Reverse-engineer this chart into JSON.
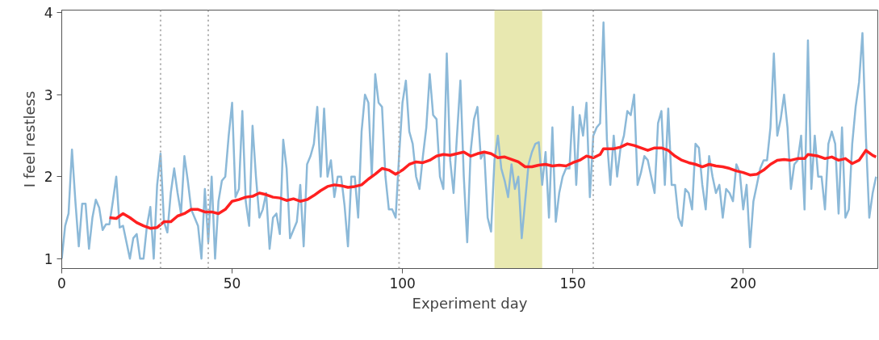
{
  "chart_data": {
    "type": "line",
    "xlabel": "Experiment day",
    "ylabel": "I feel restless",
    "xlim": [
      0,
      239.5
    ],
    "ylim": [
      0.88,
      4.03
    ],
    "xticks": [
      0,
      50,
      100,
      150,
      200
    ],
    "yticks": [
      1,
      2,
      3,
      4
    ],
    "grid": false,
    "marker": "none",
    "line_style": "solid",
    "ref_lines": [
      {
        "axis": "x",
        "value": 29,
        "color": "#aaaaaa",
        "line_style": "dotted"
      },
      {
        "axis": "x",
        "value": 43,
        "color": "#aaaaaa",
        "line_style": "dotted"
      },
      {
        "axis": "x",
        "value": 99,
        "color": "#aaaaaa",
        "line_style": "dotted"
      },
      {
        "axis": "x",
        "value": 156,
        "color": "#aaaaaa",
        "line_style": "dotted"
      }
    ],
    "bands": [
      {
        "axis": "x",
        "from": 127,
        "to": 141,
        "color": "#e8e8b0"
      }
    ],
    "series": [
      {
        "color": "#8cb9d8",
        "x": [
          0,
          1,
          2,
          3,
          4,
          5,
          6,
          7,
          8,
          9,
          10,
          11,
          12,
          13,
          14,
          15,
          16,
          17,
          18,
          19,
          20,
          21,
          22,
          23,
          24,
          25,
          26,
          27,
          28,
          29,
          30,
          31,
          32,
          33,
          34,
          35,
          36,
          37,
          38,
          39,
          40,
          41,
          42,
          43,
          44,
          45,
          46,
          47,
          48,
          49,
          50,
          51,
          52,
          53,
          54,
          55,
          56,
          57,
          58,
          59,
          60,
          61,
          62,
          63,
          64,
          65,
          66,
          67,
          68,
          69,
          70,
          71,
          72,
          73,
          74,
          75,
          76,
          77,
          78,
          79,
          80,
          81,
          82,
          83,
          84,
          85,
          86,
          87,
          88,
          89,
          90,
          91,
          92,
          93,
          94,
          95,
          96,
          97,
          98,
          99,
          100,
          101,
          102,
          103,
          104,
          105,
          106,
          107,
          108,
          109,
          110,
          111,
          112,
          113,
          114,
          115,
          116,
          117,
          118,
          119,
          120,
          121,
          122,
          123,
          124,
          125,
          126,
          127,
          128,
          129,
          130,
          131,
          132,
          133,
          134,
          135,
          136,
          137,
          138,
          139,
          140,
          141,
          142,
          143,
          144,
          145,
          146,
          147,
          148,
          149,
          150,
          151,
          152,
          153,
          154,
          155,
          156,
          157,
          158,
          159,
          160,
          161,
          162,
          163,
          164,
          165,
          166,
          167,
          168,
          169,
          170,
          171,
          172,
          173,
          174,
          175,
          176,
          177,
          178,
          179,
          180,
          181,
          182,
          183,
          184,
          185,
          186,
          187,
          188,
          189,
          190,
          191,
          192,
          193,
          194,
          195,
          196,
          197,
          198,
          199,
          200,
          201,
          202,
          203,
          204,
          205,
          206,
          207,
          208,
          209,
          210,
          211,
          212,
          213,
          214,
          215,
          216,
          217,
          218,
          219,
          220,
          221,
          222,
          223,
          224,
          225,
          226,
          227,
          228,
          229,
          230,
          231,
          232,
          233,
          234,
          235,
          236,
          237,
          238,
          239
        ],
        "values": [
          1.0,
          1.4,
          1.55,
          2.33,
          1.7,
          1.15,
          1.67,
          1.67,
          1.12,
          1.5,
          1.72,
          1.62,
          1.35,
          1.42,
          1.42,
          1.7,
          2.0,
          1.38,
          1.4,
          1.2,
          1.0,
          1.25,
          1.3,
          1.0,
          1.0,
          1.4,
          1.63,
          1.0,
          1.9,
          2.28,
          1.45,
          1.32,
          1.8,
          2.1,
          1.8,
          1.55,
          2.25,
          1.95,
          1.6,
          1.5,
          1.4,
          1.0,
          1.85,
          1.2,
          2.0,
          1.0,
          1.7,
          1.95,
          2.0,
          2.5,
          2.9,
          1.75,
          1.85,
          2.8,
          1.7,
          1.4,
          2.62,
          2.0,
          1.5,
          1.6,
          1.8,
          1.12,
          1.5,
          1.55,
          1.3,
          2.45,
          2.1,
          1.25,
          1.35,
          1.45,
          1.9,
          1.15,
          2.15,
          2.25,
          2.4,
          2.85,
          2.0,
          2.83,
          2.0,
          2.2,
          1.75,
          2.0,
          2.0,
          1.65,
          1.15,
          2.0,
          2.0,
          1.5,
          2.55,
          3.0,
          2.9,
          2.0,
          3.25,
          2.9,
          2.85,
          2.0,
          1.6,
          1.6,
          1.5,
          2.25,
          2.9,
          3.17,
          2.55,
          2.4,
          2.0,
          1.85,
          2.25,
          2.6,
          3.25,
          2.75,
          2.7,
          2.0,
          1.85,
          3.5,
          2.2,
          1.8,
          2.5,
          3.17,
          2.0,
          1.2,
          2.3,
          2.7,
          2.85,
          2.22,
          2.3,
          1.5,
          1.33,
          2.2,
          2.5,
          2.1,
          1.95,
          1.75,
          2.15,
          1.85,
          2.0,
          1.25,
          1.7,
          2.15,
          2.3,
          2.4,
          2.42,
          1.9,
          2.3,
          1.5,
          2.6,
          1.45,
          1.8,
          2.0,
          2.1,
          2.1,
          2.85,
          1.9,
          2.75,
          2.5,
          2.9,
          1.75,
          2.5,
          2.6,
          2.65,
          3.88,
          2.45,
          1.9,
          2.5,
          2.0,
          2.35,
          2.5,
          2.8,
          2.75,
          3.0,
          1.9,
          2.05,
          2.25,
          2.2,
          2.0,
          1.8,
          2.65,
          2.8,
          1.9,
          2.83,
          1.9,
          1.9,
          1.5,
          1.4,
          1.85,
          1.8,
          1.6,
          2.4,
          2.35,
          1.9,
          1.6,
          2.25,
          2.0,
          1.8,
          1.9,
          1.5,
          1.85,
          1.8,
          1.7,
          2.15,
          2.05,
          1.6,
          1.9,
          1.14,
          1.7,
          1.9,
          2.1,
          2.2,
          2.2,
          2.6,
          3.5,
          2.5,
          2.7,
          3.0,
          2.6,
          1.85,
          2.15,
          2.2,
          2.5,
          1.6,
          3.66,
          1.85,
          2.5,
          2.0,
          2.0,
          1.6,
          2.4,
          2.55,
          2.4,
          1.55,
          2.6,
          1.5,
          1.6,
          2.4,
          2.85,
          3.15,
          3.75,
          2.5,
          1.5,
          1.8,
          2.0
        ]
      },
      {
        "color": "#ff2020",
        "x": [
          14,
          16,
          18,
          20,
          22,
          24,
          26,
          28,
          30,
          32,
          34,
          36,
          38,
          40,
          42,
          44,
          46,
          48,
          50,
          52,
          54,
          56,
          58,
          60,
          62,
          64,
          66,
          68,
          70,
          72,
          74,
          76,
          78,
          80,
          82,
          84,
          86,
          88,
          90,
          92,
          94,
          96,
          98,
          100,
          102,
          104,
          106,
          108,
          110,
          112,
          114,
          116,
          118,
          120,
          122,
          124,
          126,
          128,
          130,
          132,
          134,
          136,
          138,
          140,
          142,
          144,
          146,
          148,
          150,
          152,
          154,
          156,
          158,
          159,
          162,
          164,
          166,
          168,
          170,
          172,
          174,
          176,
          178,
          180,
          182,
          184,
          186,
          188,
          190,
          192,
          194,
          196,
          198,
          200,
          202,
          204,
          206,
          208,
          210,
          212,
          214,
          216,
          218,
          219,
          222,
          224,
          226,
          228,
          230,
          232,
          234,
          236,
          238,
          239
        ],
        "values": [
          1.5,
          1.49,
          1.55,
          1.5,
          1.44,
          1.4,
          1.37,
          1.38,
          1.45,
          1.45,
          1.52,
          1.55,
          1.6,
          1.6,
          1.57,
          1.57,
          1.55,
          1.6,
          1.7,
          1.72,
          1.75,
          1.76,
          1.8,
          1.78,
          1.75,
          1.74,
          1.71,
          1.73,
          1.7,
          1.72,
          1.77,
          1.83,
          1.88,
          1.9,
          1.89,
          1.87,
          1.88,
          1.9,
          1.97,
          2.03,
          2.1,
          2.08,
          2.03,
          2.08,
          2.15,
          2.18,
          2.17,
          2.2,
          2.25,
          2.27,
          2.26,
          2.28,
          2.3,
          2.25,
          2.28,
          2.3,
          2.28,
          2.23,
          2.24,
          2.21,
          2.18,
          2.12,
          2.12,
          2.14,
          2.15,
          2.13,
          2.14,
          2.13,
          2.17,
          2.2,
          2.25,
          2.23,
          2.27,
          2.34,
          2.34,
          2.36,
          2.4,
          2.38,
          2.35,
          2.32,
          2.35,
          2.35,
          2.32,
          2.25,
          2.2,
          2.17,
          2.15,
          2.12,
          2.15,
          2.13,
          2.12,
          2.1,
          2.07,
          2.05,
          2.02,
          2.03,
          2.08,
          2.15,
          2.2,
          2.21,
          2.2,
          2.22,
          2.22,
          2.27,
          2.25,
          2.22,
          2.24,
          2.2,
          2.22,
          2.16,
          2.2,
          2.32,
          2.26,
          2.24
        ]
      }
    ]
  }
}
